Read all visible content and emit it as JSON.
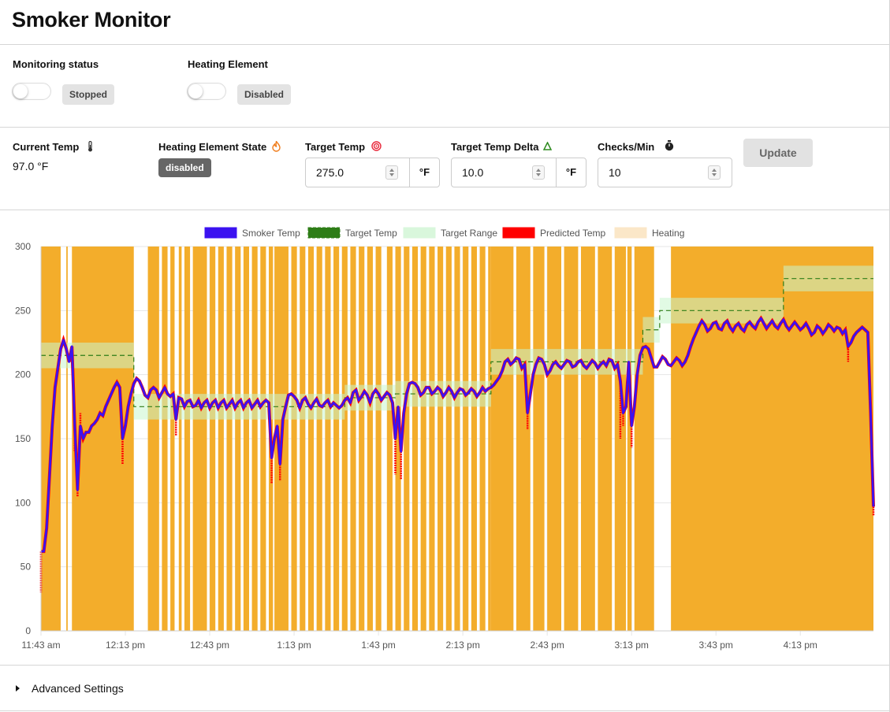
{
  "app": {
    "title": "Smoker Monitor"
  },
  "monitoring": {
    "label": "Monitoring status",
    "status": "Stopped"
  },
  "heating": {
    "label": "Heating Element",
    "status": "Disabled"
  },
  "stats": {
    "current_temp": {
      "label": "Current Temp",
      "value": "97.0 °F",
      "icon": "thermometer-icon"
    },
    "heating_state": {
      "label": "Heating Element State",
      "value": "disabled",
      "icon": "flame-icon"
    },
    "target_temp": {
      "label": "Target Temp",
      "value": "275.0",
      "unit": "°F",
      "icon": "target-icon"
    },
    "target_delta": {
      "label": "Target Temp Delta",
      "value": "10.0",
      "unit": "°F",
      "icon": "delta-icon"
    },
    "checks_per_min": {
      "label": "Checks/Min",
      "value": "10",
      "icon": "stopwatch-icon"
    },
    "update_label": "Update"
  },
  "advanced": {
    "label": "Advanced Settings"
  },
  "chart_data": {
    "type": "line",
    "legend_position": "top",
    "legend": [
      "Smoker Temp",
      "Target Temp",
      "Target Range",
      "Predicted Temp",
      "Heating"
    ],
    "colors": {
      "smoker": "#3b12f0",
      "target": "#2e7d17",
      "range": "#d9f7dc",
      "predicted": "#ff0000",
      "heating": "#f3ad2b"
    },
    "x_tick_labels": [
      "11:43 am",
      "12:13 pm",
      "12:43 pm",
      "1:13 pm",
      "1:43 pm",
      "2:13 pm",
      "2:43 pm",
      "3:13 pm",
      "3:43 pm",
      "4:13 pm"
    ],
    "x_tick_minutes": [
      0,
      30,
      60,
      90,
      120,
      150,
      180,
      210,
      240,
      270
    ],
    "x_range_minutes": [
      0,
      296
    ],
    "ylim": [
      0,
      300
    ],
    "y_ticks": [
      0,
      50,
      100,
      150,
      200,
      250,
      300
    ],
    "grid": true,
    "target_steps": [
      [
        0,
        215
      ],
      [
        33,
        215
      ],
      [
        33,
        175
      ],
      [
        108,
        175
      ],
      [
        108,
        182
      ],
      [
        126,
        182
      ],
      [
        126,
        185
      ],
      [
        160,
        185
      ],
      [
        160,
        210
      ],
      [
        214,
        210
      ],
      [
        214,
        235
      ],
      [
        220,
        235
      ],
      [
        220,
        250
      ],
      [
        264,
        250
      ],
      [
        264,
        275
      ],
      [
        296,
        275
      ]
    ],
    "range_delta": 10,
    "heating_intervals": [
      [
        0,
        7
      ],
      [
        9,
        9.5
      ],
      [
        11,
        33
      ],
      [
        38,
        42
      ],
      [
        43,
        45
      ],
      [
        46,
        47.5
      ],
      [
        49,
        50
      ],
      [
        51,
        53
      ],
      [
        54,
        59
      ],
      [
        60,
        62
      ],
      [
        63,
        65
      ],
      [
        66,
        68
      ],
      [
        69,
        71
      ],
      [
        72,
        74
      ],
      [
        75,
        77
      ],
      [
        78,
        80
      ],
      [
        81,
        82.5
      ],
      [
        83,
        88
      ],
      [
        89,
        91
      ],
      [
        92,
        94
      ],
      [
        95,
        97
      ],
      [
        98,
        100
      ],
      [
        101,
        103
      ],
      [
        104,
        106
      ],
      [
        107,
        109
      ],
      [
        110,
        112
      ],
      [
        113,
        115
      ],
      [
        116,
        118
      ],
      [
        119,
        121
      ],
      [
        123,
        125
      ],
      [
        126,
        128
      ],
      [
        129,
        131
      ],
      [
        132,
        134
      ],
      [
        135,
        137
      ],
      [
        138,
        140
      ],
      [
        141,
        143
      ],
      [
        144,
        146
      ],
      [
        147,
        149
      ],
      [
        150,
        152
      ],
      [
        153,
        155
      ],
      [
        156,
        158
      ],
      [
        159,
        160
      ],
      [
        160,
        168
      ],
      [
        169,
        174
      ],
      [
        175,
        179
      ],
      [
        180,
        185
      ],
      [
        186,
        191
      ],
      [
        192,
        197
      ],
      [
        198,
        203
      ],
      [
        204,
        208
      ],
      [
        208.5,
        210
      ],
      [
        211,
        218
      ],
      [
        224,
        296
      ]
    ],
    "smoker_points": [
      [
        0,
        62
      ],
      [
        1,
        62
      ],
      [
        2,
        80
      ],
      [
        3,
        120
      ],
      [
        4,
        160
      ],
      [
        5,
        190
      ],
      [
        6,
        205
      ],
      [
        7,
        220
      ],
      [
        8,
        227
      ],
      [
        9,
        220
      ],
      [
        10,
        210
      ],
      [
        11,
        222
      ],
      [
        12,
        160
      ],
      [
        13,
        110
      ],
      [
        14,
        160
      ],
      [
        15,
        150
      ],
      [
        16,
        155
      ],
      [
        17,
        155
      ],
      [
        18,
        160
      ],
      [
        19,
        162
      ],
      [
        20,
        165
      ],
      [
        21,
        170
      ],
      [
        22,
        168
      ],
      [
        23,
        175
      ],
      [
        24,
        180
      ],
      [
        25,
        185
      ],
      [
        26,
        190
      ],
      [
        27,
        194
      ],
      [
        28,
        190
      ],
      [
        29,
        150
      ],
      [
        30,
        160
      ],
      [
        31,
        175
      ],
      [
        32,
        185
      ],
      [
        33,
        193
      ],
      [
        34,
        197
      ],
      [
        35,
        195
      ],
      [
        36,
        190
      ],
      [
        37,
        184
      ],
      [
        38,
        182
      ],
      [
        39,
        188
      ],
      [
        40,
        190
      ],
      [
        41,
        188
      ],
      [
        42,
        182
      ],
      [
        43,
        186
      ],
      [
        44,
        190
      ],
      [
        45,
        185
      ],
      [
        46,
        183
      ],
      [
        47,
        185
      ],
      [
        48,
        165
      ],
      [
        49,
        182
      ],
      [
        50,
        181
      ],
      [
        51,
        175
      ],
      [
        52,
        179
      ],
      [
        53,
        180
      ],
      [
        54,
        175
      ],
      [
        55,
        176
      ],
      [
        56,
        180
      ],
      [
        57,
        174
      ],
      [
        58,
        178
      ],
      [
        59,
        180
      ],
      [
        60,
        174
      ],
      [
        61,
        178
      ],
      [
        62,
        180
      ],
      [
        63,
        174
      ],
      [
        64,
        178
      ],
      [
        65,
        180
      ],
      [
        66,
        174
      ],
      [
        67,
        177
      ],
      [
        68,
        180
      ],
      [
        69,
        174
      ],
      [
        70,
        178
      ],
      [
        71,
        180
      ],
      [
        72,
        174
      ],
      [
        73,
        178
      ],
      [
        74,
        180
      ],
      [
        75,
        174
      ],
      [
        76,
        177
      ],
      [
        77,
        180
      ],
      [
        78,
        175
      ],
      [
        79,
        178
      ],
      [
        80,
        180
      ],
      [
        81,
        178
      ],
      [
        82,
        135
      ],
      [
        83,
        150
      ],
      [
        84,
        160
      ],
      [
        85,
        130
      ],
      [
        86,
        165
      ],
      [
        87,
        175
      ],
      [
        88,
        184
      ],
      [
        89,
        185
      ],
      [
        90,
        183
      ],
      [
        91,
        180
      ],
      [
        92,
        174
      ],
      [
        93,
        180
      ],
      [
        94,
        182
      ],
      [
        95,
        177
      ],
      [
        96,
        174
      ],
      [
        97,
        178
      ],
      [
        98,
        181
      ],
      [
        99,
        176
      ],
      [
        100,
        175
      ],
      [
        101,
        178
      ],
      [
        102,
        180
      ],
      [
        103,
        175
      ],
      [
        104,
        178
      ],
      [
        105,
        176
      ],
      [
        106,
        174
      ],
      [
        107,
        176
      ],
      [
        108,
        180
      ],
      [
        109,
        182
      ],
      [
        110,
        178
      ],
      [
        111,
        186
      ],
      [
        112,
        188
      ],
      [
        113,
        180
      ],
      [
        114,
        183
      ],
      [
        115,
        187
      ],
      [
        116,
        184
      ],
      [
        117,
        178
      ],
      [
        118,
        185
      ],
      [
        119,
        188
      ],
      [
        120,
        185
      ],
      [
        121,
        180
      ],
      [
        122,
        183
      ],
      [
        123,
        186
      ],
      [
        124,
        184
      ],
      [
        125,
        178
      ],
      [
        126,
        150
      ],
      [
        127,
        175
      ],
      [
        128,
        140
      ],
      [
        129,
        170
      ],
      [
        130,
        185
      ],
      [
        131,
        193
      ],
      [
        132,
        194
      ],
      [
        133,
        193
      ],
      [
        134,
        190
      ],
      [
        135,
        184
      ],
      [
        136,
        186
      ],
      [
        137,
        190
      ],
      [
        138,
        190
      ],
      [
        139,
        185
      ],
      [
        140,
        187
      ],
      [
        141,
        190
      ],
      [
        142,
        188
      ],
      [
        143,
        183
      ],
      [
        144,
        186
      ],
      [
        145,
        190
      ],
      [
        146,
        187
      ],
      [
        147,
        182
      ],
      [
        148,
        186
      ],
      [
        149,
        189
      ],
      [
        150,
        188
      ],
      [
        151,
        184
      ],
      [
        152,
        186
      ],
      [
        153,
        189
      ],
      [
        154,
        187
      ],
      [
        155,
        183
      ],
      [
        156,
        186
      ],
      [
        157,
        190
      ],
      [
        158,
        187
      ],
      [
        159,
        189
      ],
      [
        160,
        190
      ],
      [
        161,
        192
      ],
      [
        162,
        195
      ],
      [
        163,
        198
      ],
      [
        164,
        203
      ],
      [
        165,
        210
      ],
      [
        166,
        212
      ],
      [
        167,
        208
      ],
      [
        168,
        210
      ],
      [
        169,
        213
      ],
      [
        170,
        212
      ],
      [
        171,
        205
      ],
      [
        172,
        208
      ],
      [
        173,
        170
      ],
      [
        174,
        185
      ],
      [
        175,
        200
      ],
      [
        176,
        208
      ],
      [
        177,
        213
      ],
      [
        178,
        212
      ],
      [
        179,
        208
      ],
      [
        180,
        200
      ],
      [
        181,
        203
      ],
      [
        182,
        208
      ],
      [
        183,
        210
      ],
      [
        184,
        207
      ],
      [
        185,
        205
      ],
      [
        186,
        208
      ],
      [
        187,
        211
      ],
      [
        188,
        210
      ],
      [
        189,
        206
      ],
      [
        190,
        207
      ],
      [
        191,
        210
      ],
      [
        192,
        211
      ],
      [
        193,
        207
      ],
      [
        194,
        205
      ],
      [
        195,
        208
      ],
      [
        196,
        211
      ],
      [
        197,
        209
      ],
      [
        198,
        205
      ],
      [
        199,
        208
      ],
      [
        200,
        210
      ],
      [
        201,
        207
      ],
      [
        202,
        212
      ],
      [
        203,
        211
      ],
      [
        204,
        205
      ],
      [
        205,
        208
      ],
      [
        206,
        195
      ],
      [
        207,
        170
      ],
      [
        208,
        175
      ],
      [
        209,
        210
      ],
      [
        210,
        160
      ],
      [
        211,
        175
      ],
      [
        212,
        200
      ],
      [
        213,
        215
      ],
      [
        214,
        221
      ],
      [
        215,
        222
      ],
      [
        216,
        220
      ],
      [
        217,
        213
      ],
      [
        218,
        206
      ],
      [
        219,
        206
      ],
      [
        220,
        210
      ],
      [
        221,
        214
      ],
      [
        222,
        212
      ],
      [
        223,
        208
      ],
      [
        224,
        207
      ],
      [
        225,
        210
      ],
      [
        226,
        213
      ],
      [
        227,
        211
      ],
      [
        228,
        207
      ],
      [
        229,
        210
      ],
      [
        230,
        215
      ],
      [
        231,
        222
      ],
      [
        232,
        228
      ],
      [
        233,
        233
      ],
      [
        234,
        238
      ],
      [
        235,
        242
      ],
      [
        236,
        239
      ],
      [
        237,
        234
      ],
      [
        238,
        236
      ],
      [
        239,
        240
      ],
      [
        240,
        241
      ],
      [
        241,
        236
      ],
      [
        242,
        235
      ],
      [
        243,
        240
      ],
      [
        244,
        242
      ],
      [
        245,
        237
      ],
      [
        246,
        234
      ],
      [
        247,
        238
      ],
      [
        248,
        240
      ],
      [
        249,
        236
      ],
      [
        250,
        234
      ],
      [
        251,
        239
      ],
      [
        252,
        241
      ],
      [
        253,
        238
      ],
      [
        254,
        236
      ],
      [
        255,
        241
      ],
      [
        256,
        244
      ],
      [
        257,
        240
      ],
      [
        258,
        236
      ],
      [
        259,
        239
      ],
      [
        260,
        242
      ],
      [
        261,
        238
      ],
      [
        262,
        236
      ],
      [
        263,
        240
      ],
      [
        264,
        243
      ],
      [
        265,
        238
      ],
      [
        266,
        235
      ],
      [
        267,
        238
      ],
      [
        268,
        241
      ],
      [
        269,
        238
      ],
      [
        270,
        235
      ],
      [
        271,
        237
      ],
      [
        272,
        240
      ],
      [
        273,
        236
      ],
      [
        274,
        231
      ],
      [
        275,
        233
      ],
      [
        276,
        238
      ],
      [
        277,
        236
      ],
      [
        278,
        232
      ],
      [
        279,
        235
      ],
      [
        280,
        239
      ],
      [
        281,
        237
      ],
      [
        282,
        234
      ],
      [
        283,
        237
      ],
      [
        284,
        236
      ],
      [
        285,
        232
      ],
      [
        286,
        235
      ],
      [
        287,
        222
      ],
      [
        288,
        225
      ],
      [
        289,
        230
      ],
      [
        290,
        233
      ],
      [
        291,
        235
      ],
      [
        292,
        237
      ],
      [
        293,
        235
      ],
      [
        294,
        233
      ],
      [
        295,
        170
      ],
      [
        296,
        97
      ]
    ],
    "predicted_points": [
      [
        0,
        30
      ],
      [
        0.4,
        62
      ],
      [
        12,
        140
      ],
      [
        13,
        105
      ],
      [
        14,
        170
      ],
      [
        29,
        130
      ],
      [
        48,
        152
      ],
      [
        82,
        115
      ],
      [
        85,
        117
      ],
      [
        126,
        122
      ],
      [
        128,
        118
      ],
      [
        173,
        157
      ],
      [
        206,
        150
      ],
      [
        207,
        160
      ],
      [
        210,
        143
      ],
      [
        287,
        210
      ],
      [
        295,
        160
      ],
      [
        296,
        90
      ]
    ]
  }
}
